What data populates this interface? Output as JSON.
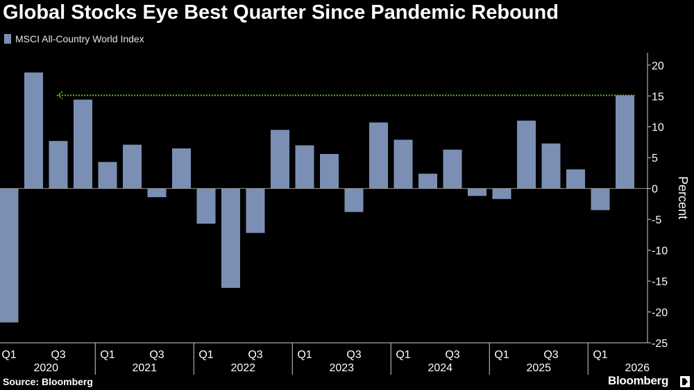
{
  "header": {
    "title": "Global Stocks Eye Best Quarter Since Pandemic Rebound"
  },
  "legend": {
    "label": "MSCI All-Country World Index"
  },
  "footer": {
    "source": "Source: Bloomberg",
    "brand": "Bloomberg"
  },
  "colors": {
    "background": "#000000",
    "bar": "#7b8fb5",
    "grid": "#6a6a6a",
    "reference_line": "#5cbf2a",
    "text": "#ffffff"
  },
  "icons": {
    "brand_mark": "bloomberg-logo-mark-icon"
  },
  "chart_data": {
    "type": "bar",
    "categories": [
      "Q1 2020",
      "Q2 2020",
      "Q3 2020",
      "Q4 2020",
      "Q1 2021",
      "Q2 2021",
      "Q3 2021",
      "Q4 2021",
      "Q1 2022",
      "Q2 2022",
      "Q3 2022",
      "Q4 2022",
      "Q1 2023",
      "Q2 2023",
      "Q3 2023",
      "Q4 2023",
      "Q1 2024",
      "Q2 2024",
      "Q3 2024",
      "Q4 2024",
      "Q1 2025",
      "Q2 2025",
      "Q3 2025",
      "Q4 2025",
      "Q1 2026",
      "Q2 2026"
    ],
    "series": [
      {
        "name": "MSCI All-Country World Index",
        "values": [
          -21.7,
          18.8,
          7.7,
          14.4,
          4.3,
          7.1,
          -1.4,
          6.5,
          -5.7,
          -16.1,
          -7.2,
          9.5,
          7.0,
          5.6,
          -3.8,
          10.7,
          7.9,
          2.4,
          6.3,
          -1.2,
          -1.7,
          11.0,
          7.3,
          3.1,
          -3.5,
          15.1
        ]
      }
    ],
    "reference_line": {
      "y": 15.1,
      "from": "Q3 2020",
      "to": "Q2 2026",
      "style": "dotted",
      "arrow": "left"
    },
    "x_tick_labels": [
      "Q1",
      "Q3",
      "Q1",
      "Q3",
      "Q1",
      "Q3",
      "Q1",
      "Q3",
      "Q1",
      "Q3",
      "Q1",
      "Q3",
      "Q1"
    ],
    "x_tick_positions": [
      "Q1 2020",
      "Q3 2020",
      "Q1 2021",
      "Q3 2021",
      "Q1 2022",
      "Q3 2022",
      "Q1 2023",
      "Q3 2023",
      "Q1 2024",
      "Q3 2024",
      "Q1 2025",
      "Q3 2025",
      "Q1 2026"
    ],
    "year_labels": [
      "2020",
      "2021",
      "2022",
      "2023",
      "2024",
      "2025",
      "2026"
    ],
    "y_ticks": [
      20,
      15,
      10,
      5,
      0,
      -5,
      -10,
      -15,
      -20,
      -25
    ],
    "y_tick_labels": [
      "20",
      "15",
      "10",
      "5",
      "0",
      "-5",
      "-10",
      "-15",
      "-20",
      "-25"
    ],
    "ylabel": "Percent",
    "ylim": [
      -25,
      22
    ],
    "y_axis_position": "right",
    "grid": "zero-line-only",
    "legend_position": "top-left"
  }
}
